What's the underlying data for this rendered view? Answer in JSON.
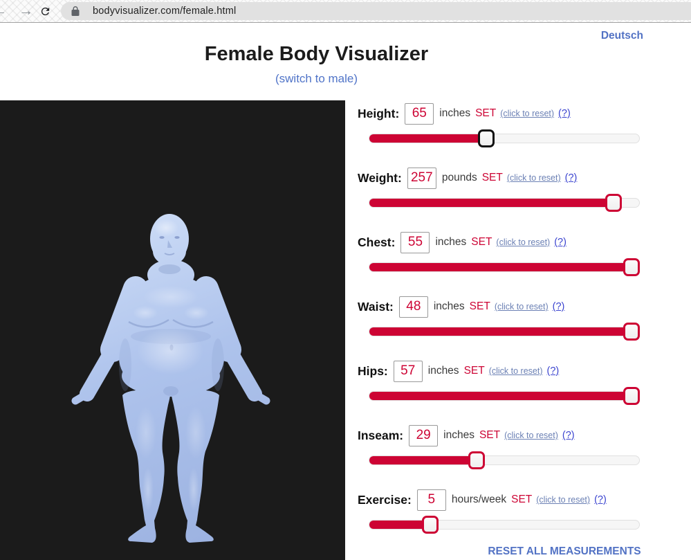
{
  "browser": {
    "url": "bodyvisualizer.com/female.html",
    "back_glyph": "←",
    "forward_glyph": "→",
    "icons": [
      "back-icon",
      "forward-icon",
      "reload-icon",
      "lock-icon"
    ]
  },
  "header": {
    "title": "Female Body Visualizer",
    "switch_link": "(switch to male)",
    "language_link": "Deutsch"
  },
  "viewer": {
    "description": "3d-female-body-model",
    "background": "#1b1b1b",
    "figure_color": "#aec3ec"
  },
  "controls": {
    "set_label": "SET",
    "reset_label": "(click to reset)",
    "help_label": "(?)",
    "reset_all_label": "RESET ALL MEASUREMENTS",
    "accent_color": "#cd0434",
    "link_color": "#5272c4",
    "sliders": [
      {
        "id": "height",
        "label": "Height:",
        "value": "65",
        "unit": "inches",
        "percent": 43,
        "thumb_style": "black"
      },
      {
        "id": "weight",
        "label": "Weight:",
        "value": "257",
        "unit": "pounds",
        "percent": 93,
        "thumb_style": "crimson"
      },
      {
        "id": "chest",
        "label": "Chest:",
        "value": "55",
        "unit": "inches",
        "percent": 100,
        "thumb_style": "crimson"
      },
      {
        "id": "waist",
        "label": "Waist:",
        "value": "48",
        "unit": "inches",
        "percent": 100,
        "thumb_style": "crimson"
      },
      {
        "id": "hips",
        "label": "Hips:",
        "value": "57",
        "unit": "inches",
        "percent": 100,
        "thumb_style": "crimson"
      },
      {
        "id": "inseam",
        "label": "Inseam:",
        "value": "29",
        "unit": "inches",
        "percent": 39,
        "thumb_style": "crimson"
      },
      {
        "id": "exercise",
        "label": "Exercise:",
        "value": "5",
        "unit": "hours/week",
        "percent": 21,
        "thumb_style": "crimson"
      }
    ]
  }
}
